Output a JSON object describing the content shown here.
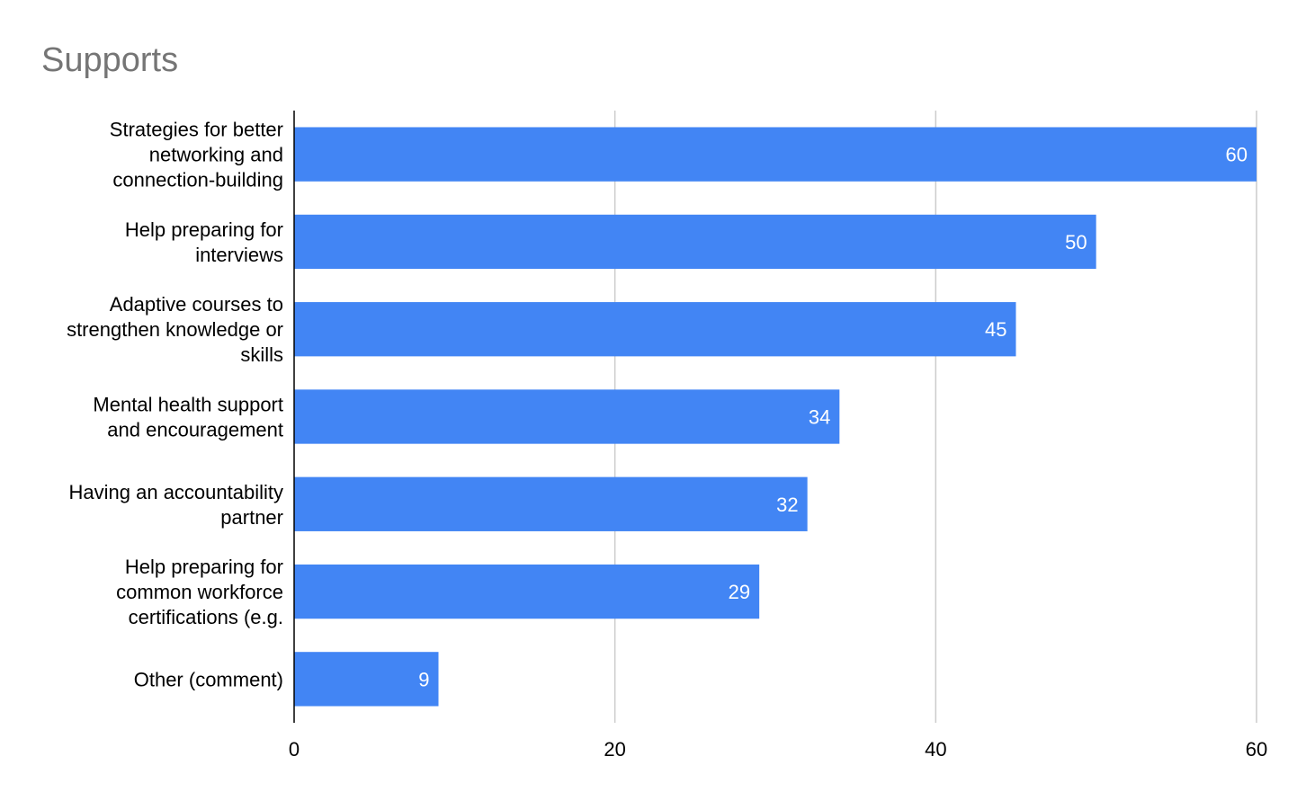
{
  "chart_data": {
    "type": "bar",
    "orientation": "horizontal",
    "title": "Supports",
    "categories": [
      [
        "Strategies for better",
        "networking and",
        "connection-building"
      ],
      [
        "Help preparing for",
        "interviews"
      ],
      [
        "Adaptive courses to",
        "strengthen knowledge or",
        "skills"
      ],
      [
        "Mental health support",
        "and encouragement"
      ],
      [
        "Having an accountability",
        "partner"
      ],
      [
        "Help preparing for",
        "common workforce",
        "certifications (e.g."
      ],
      [
        "Other (comment)"
      ]
    ],
    "values": [
      60,
      50,
      45,
      34,
      32,
      29,
      9
    ],
    "data_labels": [
      "60",
      "50",
      "45",
      "34",
      "32",
      "29",
      "9"
    ],
    "xlim": [
      0,
      60
    ],
    "xticks": [
      0,
      20,
      40,
      60
    ],
    "xtick_labels": [
      "0",
      "20",
      "40",
      "60"
    ],
    "xlabel": "",
    "ylabel": "",
    "grid": "vertical",
    "legend": "none",
    "bar_color": "#4285f4",
    "grid_color": "#cccccc",
    "axis_color": "#000000",
    "title_color": "#757575"
  }
}
